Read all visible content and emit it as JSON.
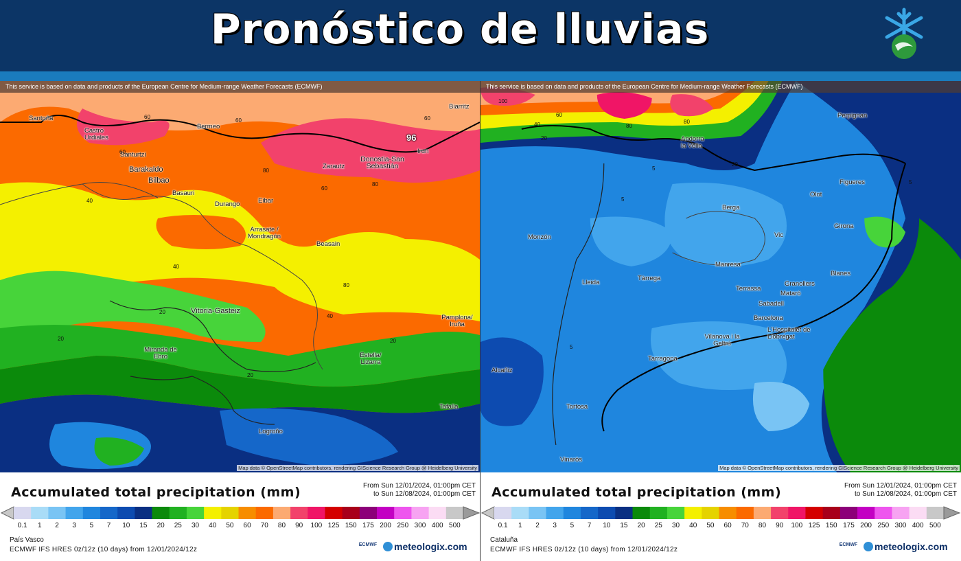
{
  "header": {
    "title": "Pronóstico de lluvias",
    "logo_icon": "snowflake-logo-icon",
    "colors": {
      "bg": "#0c3566",
      "stripe": "#1a7bbd",
      "title": "#ffffff"
    }
  },
  "common": {
    "ecmwf_notice": "This service is based on data and products of the European Centre for Medium-range Weather Forecasts (ECMWF)",
    "map_credit": "Map data © OpenStreetMap contributors, rendering GIScience Research Group @ Heidelberg University",
    "legend_title": "Accumulated total precipitation (mm)",
    "period_from": "From Sun 12/01/2024, 01:00pm CET",
    "period_to": "to Sun 12/08/2024, 01:00pm CET",
    "model": "ECMWF IFS HRES 0z/12z (10 days) from 12/01/2024/12z",
    "brand_ecmwf": "ECMWF",
    "brand_meteologix": "meteologix.com",
    "scale_values": [
      "0.1",
      "1",
      "2",
      "3",
      "5",
      "7",
      "10",
      "15",
      "20",
      "25",
      "30",
      "40",
      "50",
      "60",
      "70",
      "80",
      "90",
      "100",
      "125",
      "150",
      "175",
      "200",
      "250",
      "300",
      "400",
      "500"
    ],
    "scale_colors": [
      "#d8d8ef",
      "#a9dcf7",
      "#79c4f4",
      "#42a5ec",
      "#1f86de",
      "#1567c9",
      "#0d4bb0",
      "#0a2f82",
      "#0b8a0b",
      "#21b121",
      "#47d43a",
      "#f4f000",
      "#e5d300",
      "#f78d00",
      "#fb6a00",
      "#fcaa72",
      "#f2426b",
      "#f01566",
      "#d40000",
      "#a8001a",
      "#8c0079",
      "#c300c3",
      "#ee55ee",
      "#f7a3f2",
      "#fbdcf4",
      "#c8c8c8"
    ]
  },
  "left_panel": {
    "region": "País Vasco",
    "max_value": "96",
    "cities": [
      "Santoña",
      "Castro Urdiales",
      "Santurtzi",
      "Barakaldo",
      "Bilbao",
      "Basauri",
      "Bermeo",
      "Zarautz",
      "Donostia-San Sebastián",
      "Irun",
      "Biarritz",
      "Durango",
      "Eibar",
      "Arrasate / Mondragón",
      "Beasain",
      "Vitoria-Gasteiz",
      "Miranda de Ebro",
      "Estella/ Lizarra",
      "Pamplona/ Iruña",
      "Tafalla",
      "Logroño"
    ],
    "isolines": [
      "60",
      "60",
      "60",
      "60",
      "80",
      "80",
      "80",
      "40",
      "40",
      "40",
      "20",
      "20",
      "20",
      "60",
      "20"
    ]
  },
  "right_panel": {
    "region": "Cataluña",
    "cities": [
      "Perpignan",
      "Andorra la Vella",
      "Figueres",
      "Olot",
      "Berga",
      "Girona",
      "Vic",
      "Monzón",
      "Manresa",
      "Lleida",
      "Tàrrega",
      "Blanes",
      "Granollers",
      "Terrassa",
      "Mataró",
      "Sabadell",
      "Barcelona",
      "L'Hospitalet de Llobregat",
      "Vilanova i la Geltrú",
      "Tarragona",
      "Alcañiz",
      "Tortosa",
      "Vinaròs"
    ],
    "isolines": [
      "100",
      "60",
      "40",
      "20",
      "80",
      "80",
      "20",
      "5",
      "5",
      "5",
      "5"
    ]
  }
}
